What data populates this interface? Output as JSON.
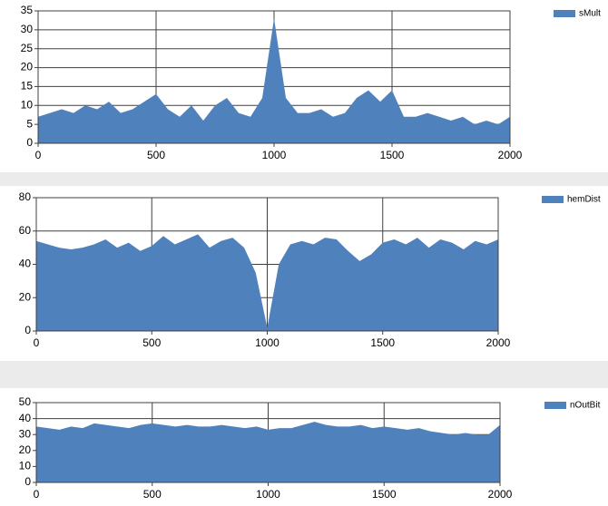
{
  "chart_data": [
    {
      "type": "area",
      "x": [
        0,
        50,
        100,
        150,
        200,
        250,
        300,
        350,
        400,
        450,
        500,
        550,
        600,
        650,
        700,
        750,
        800,
        850,
        900,
        950,
        1000,
        1050,
        1100,
        1150,
        1200,
        1250,
        1300,
        1350,
        1400,
        1450,
        1500,
        1550,
        1600,
        1650,
        1700,
        1750,
        1800,
        1850,
        1900,
        1950,
        2000
      ],
      "series": [
        {
          "name": "sMult",
          "color": "#4f81bd",
          "values": [
            7,
            8,
            9,
            8,
            10,
            9,
            11,
            8,
            9,
            11,
            13,
            9,
            7,
            10,
            6,
            10,
            12,
            8,
            7,
            12,
            33,
            12,
            8,
            8,
            9,
            7,
            8,
            12,
            14,
            11,
            14,
            7,
            7,
            8,
            7,
            6,
            7,
            5,
            6,
            5,
            7
          ]
        }
      ],
      "xlim": [
        0,
        2000
      ],
      "xticks": [
        0,
        500,
        1000,
        1500,
        2000
      ],
      "ylim": [
        0,
        35
      ],
      "yticks": [
        0,
        5,
        10,
        15,
        20,
        25,
        30,
        35
      ],
      "grid": true
    },
    {
      "type": "area",
      "x": [
        0,
        50,
        100,
        150,
        200,
        250,
        300,
        350,
        400,
        450,
        500,
        550,
        600,
        650,
        700,
        750,
        800,
        850,
        900,
        950,
        1000,
        1050,
        1100,
        1150,
        1200,
        1250,
        1300,
        1350,
        1400,
        1450,
        1500,
        1550,
        1600,
        1650,
        1700,
        1750,
        1800,
        1850,
        1900,
        1950,
        2000
      ],
      "series": [
        {
          "name": "hemDist",
          "color": "#4f81bd",
          "values": [
            54,
            52,
            50,
            49,
            50,
            52,
            55,
            50,
            53,
            48,
            51,
            57,
            52,
            55,
            58,
            50,
            54,
            56,
            50,
            35,
            2,
            40,
            52,
            54,
            52,
            56,
            55,
            48,
            42,
            46,
            53,
            55,
            52,
            56,
            50,
            55,
            53,
            49,
            54,
            52,
            55
          ]
        }
      ],
      "xlim": [
        0,
        2000
      ],
      "xticks": [
        0,
        500,
        1000,
        1500,
        2000
      ],
      "ylim": [
        0,
        80
      ],
      "yticks": [
        0,
        20,
        40,
        60,
        80
      ],
      "grid": true
    },
    {
      "type": "area",
      "x": [
        0,
        50,
        100,
        150,
        200,
        250,
        300,
        350,
        400,
        450,
        500,
        550,
        600,
        650,
        700,
        750,
        800,
        850,
        900,
        950,
        1000,
        1050,
        1100,
        1150,
        1200,
        1250,
        1300,
        1350,
        1400,
        1450,
        1500,
        1550,
        1600,
        1650,
        1700,
        1750,
        1800,
        1850,
        1900,
        1950,
        2000
      ],
      "series": [
        {
          "name": "nOutBit",
          "color": "#4f81bd",
          "values": [
            35,
            34,
            33,
            35,
            34,
            37,
            36,
            35,
            34,
            36,
            37,
            36,
            35,
            36,
            35,
            35,
            36,
            35,
            34,
            35,
            33,
            34,
            34,
            36,
            38,
            36,
            35,
            35,
            36,
            34,
            35,
            34,
            33,
            34,
            32,
            31,
            30,
            31,
            30,
            30,
            36
          ]
        }
      ],
      "xlim": [
        0,
        2000
      ],
      "xticks": [
        0,
        500,
        1000,
        1500,
        2000
      ],
      "ylim": [
        0,
        50
      ],
      "yticks": [
        0,
        10,
        20,
        30,
        40,
        50
      ],
      "grid": true
    }
  ]
}
